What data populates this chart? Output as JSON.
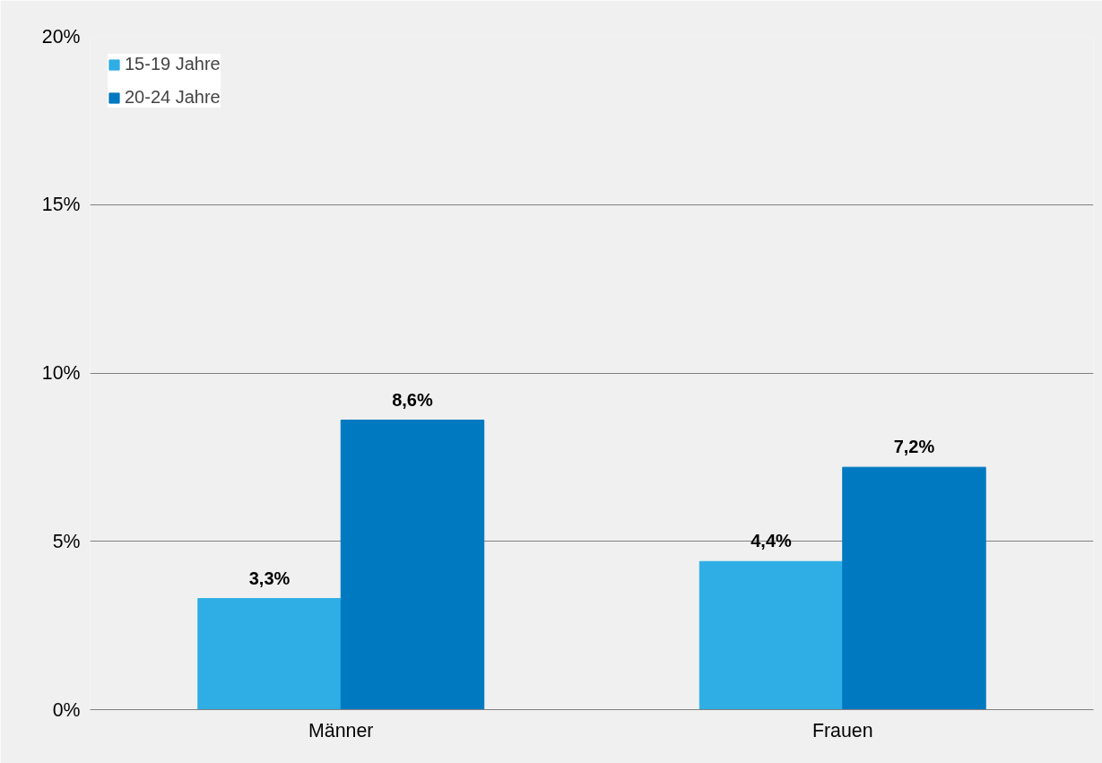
{
  "chart_data": {
    "type": "bar",
    "categories": [
      "Männer",
      "Frauen"
    ],
    "series": [
      {
        "name": "15-19 Jahre",
        "color": "#2eaee4",
        "values": [
          3.3,
          4.4
        ],
        "value_labels": [
          "3,3%",
          "4,4%"
        ]
      },
      {
        "name": "20-24 Jahre",
        "color": "#0079c1",
        "values": [
          8.6,
          7.2
        ],
        "value_labels": [
          "8,6%",
          "7,2%"
        ]
      }
    ],
    "ylim": [
      0,
      20
    ],
    "yticks": [
      {
        "value": 0,
        "label": "0%"
      },
      {
        "value": 5,
        "label": "5%"
      },
      {
        "value": 10,
        "label": "10%"
      },
      {
        "value": 15,
        "label": "15%"
      },
      {
        "value": 20,
        "label": "20%"
      }
    ],
    "grid": "y",
    "legend": "top left"
  }
}
